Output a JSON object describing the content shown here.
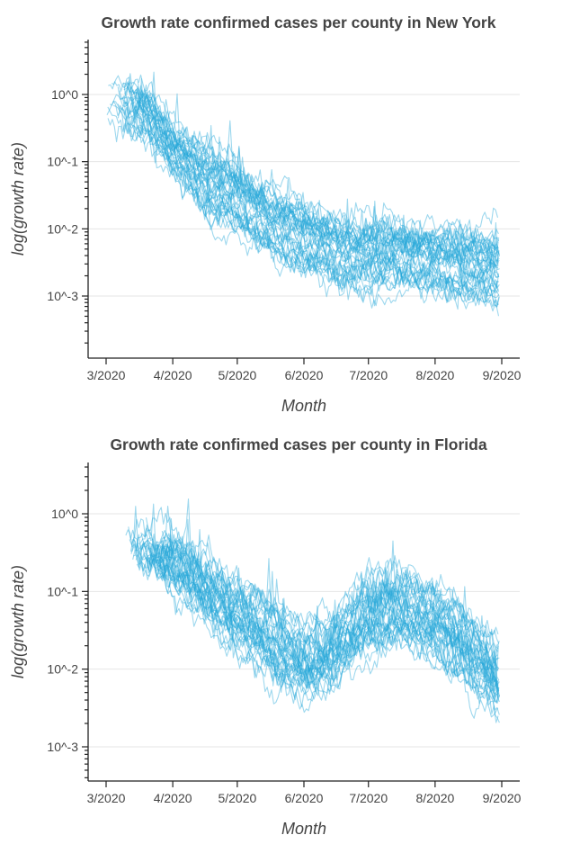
{
  "chart_data": [
    {
      "type": "line",
      "title": "Growth rate confirmed cases per county in New York",
      "xlabel": "Month",
      "ylabel": "log(growth rate)",
      "yscale": "log",
      "x_ticks": [
        "3/2020",
        "4/2020",
        "5/2020",
        "6/2020",
        "7/2020",
        "8/2020",
        "9/2020"
      ],
      "y_ticks": [
        "10^0",
        "10^-1",
        "10^-2",
        "10^-3"
      ],
      "xlim": [
        "2020-02-25",
        "2020-09-15"
      ],
      "ylim": [
        0.00012,
        6
      ],
      "grid": true,
      "line_color": "#29a8d9",
      "series_count": 40,
      "trend": {
        "x": [
          "2020-03-01",
          "2020-03-10",
          "2020-03-20",
          "2020-04-01",
          "2020-04-15",
          "2020-05-01",
          "2020-05-15",
          "2020-06-01",
          "2020-06-15",
          "2020-07-01",
          "2020-07-15",
          "2020-08-01",
          "2020-08-15",
          "2020-09-01"
        ],
        "y": [
          1.0,
          0.8,
          0.5,
          0.15,
          0.06,
          0.03,
          0.015,
          0.008,
          0.005,
          0.004,
          0.004,
          0.0035,
          0.003,
          0.0025
        ]
      }
    },
    {
      "type": "line",
      "title": "Growth rate confirmed cases per county in Florida",
      "xlabel": "Month",
      "ylabel": "log(growth rate)",
      "yscale": "log",
      "x_ticks": [
        "3/2020",
        "4/2020",
        "5/2020",
        "6/2020",
        "7/2020",
        "8/2020",
        "9/2020"
      ],
      "y_ticks": [
        "10^0",
        "10^-1",
        "10^-2",
        "10^-3"
      ],
      "xlim": [
        "2020-02-25",
        "2020-09-15"
      ],
      "ylim": [
        0.0003,
        4
      ],
      "grid": true,
      "line_color": "#29a8d9",
      "series_count": 40,
      "trend": {
        "x": [
          "2020-03-10",
          "2020-03-20",
          "2020-04-01",
          "2020-04-15",
          "2020-05-01",
          "2020-05-15",
          "2020-06-01",
          "2020-06-15",
          "2020-07-01",
          "2020-07-15",
          "2020-08-01",
          "2020-08-15",
          "2020-09-01"
        ],
        "y": [
          0.5,
          0.35,
          0.25,
          0.12,
          0.05,
          0.025,
          0.012,
          0.018,
          0.05,
          0.06,
          0.04,
          0.02,
          0.006
        ]
      }
    }
  ]
}
